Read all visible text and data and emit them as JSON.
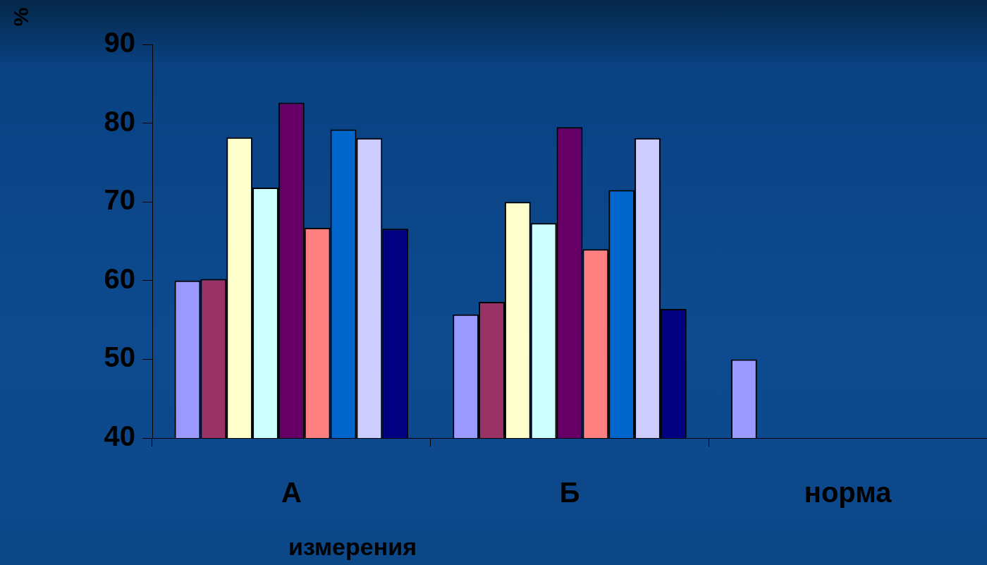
{
  "chart_data": {
    "type": "bar",
    "ylabel": "%",
    "xlabel": "измерения",
    "categories": [
      "А",
      "Б",
      "норма"
    ],
    "ylim": [
      40,
      90
    ],
    "yticks": [
      40,
      50,
      60,
      70,
      80,
      90
    ],
    "series": [
      {
        "color": "#9999ff",
        "values": [
          60,
          55.7,
          50
        ]
      },
      {
        "color": "#993366",
        "values": [
          60.2,
          57.3,
          null
        ]
      },
      {
        "color": "#ffffcc",
        "values": [
          78.2,
          70,
          null
        ]
      },
      {
        "color": "#ccffff",
        "values": [
          71.8,
          67.3,
          null
        ]
      },
      {
        "color": "#660066",
        "values": [
          82.6,
          79.5,
          null
        ]
      },
      {
        "color": "#ff8080",
        "values": [
          66.7,
          64,
          null
        ]
      },
      {
        "color": "#0066cc",
        "values": [
          79.2,
          71.5,
          null
        ]
      },
      {
        "color": "#ccccff",
        "values": [
          78.1,
          78.1,
          null
        ]
      },
      {
        "color": "#000080",
        "values": [
          66.6,
          56.4,
          null
        ]
      }
    ]
  }
}
